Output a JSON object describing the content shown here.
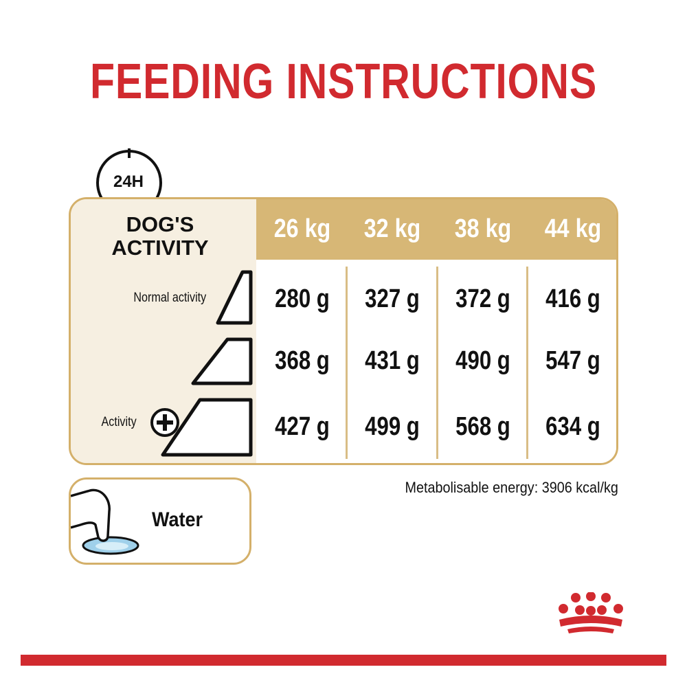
{
  "title": "FEEDING INSTRUCTIONS",
  "clock_label": "24H",
  "table": {
    "activity_heading_line1": "DOG'S",
    "activity_heading_line2": "ACTIVITY",
    "weights": [
      "26 kg",
      "32 kg",
      "38 kg",
      "44 kg"
    ],
    "rows": [
      {
        "label": "Normal activity",
        "values": [
          "280 g",
          "327 g",
          "372 g",
          "416 g"
        ]
      },
      {
        "label": "",
        "values": [
          "368 g",
          "431 g",
          "490 g",
          "547 g"
        ]
      },
      {
        "label": "Activity",
        "values": [
          "427 g",
          "499 g",
          "568 g",
          "634 g"
        ]
      }
    ]
  },
  "energy_note": "Metabolisable energy: 3906 kcal/kg",
  "water_label": "Water",
  "colors": {
    "brand_red": "#d12a2f",
    "gold": "#d7b776",
    "cream": "#f6efe1"
  },
  "icons": [
    "clock-icon",
    "activity-triangle-icon",
    "plus-icon",
    "water-bowl-icon",
    "royal-canin-crown-logo"
  ]
}
